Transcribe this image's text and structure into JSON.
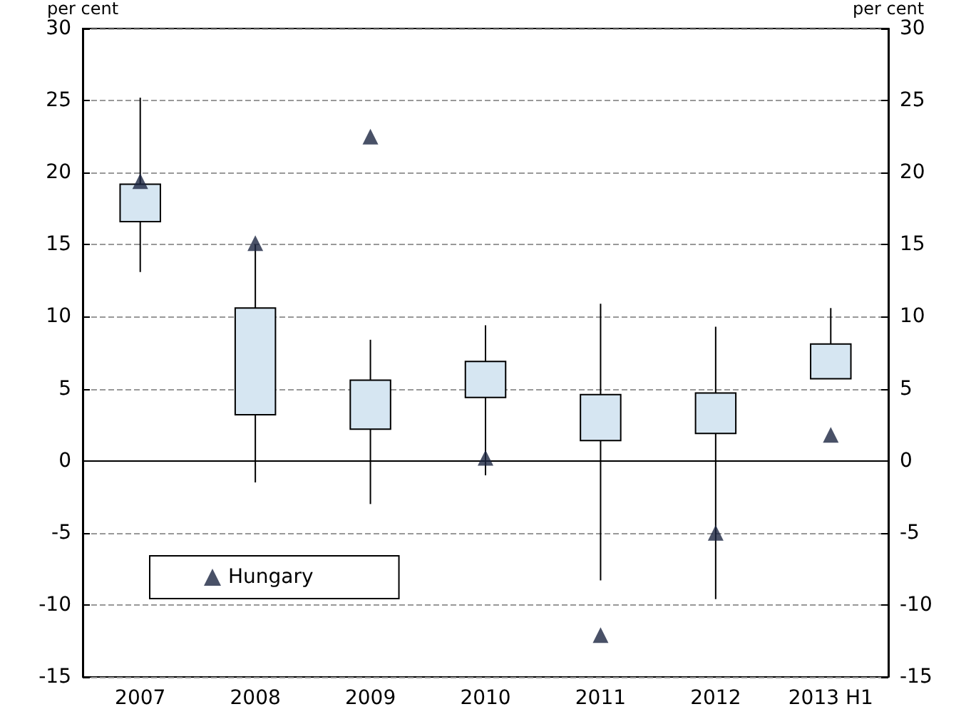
{
  "chart_data": {
    "type": "box",
    "ylabel": "per cent",
    "y2label": "per cent",
    "categories": [
      "2007",
      "2008",
      "2009",
      "2010",
      "2011",
      "2012",
      "2013 H1"
    ],
    "boxes": [
      {
        "low": 13.1,
        "q1": 16.6,
        "q3": 19.2,
        "high": 25.2
      },
      {
        "low": -1.5,
        "q1": 3.2,
        "q3": 10.6,
        "high": 15
      },
      {
        "low": -3,
        "q1": 2.2,
        "q3": 5.6,
        "high": 8.4
      },
      {
        "low": -1,
        "q1": 4.4,
        "q3": 6.9,
        "high": 9.4
      },
      {
        "low": -8.3,
        "q1": 1.4,
        "q3": 4.6,
        "high": 10.9
      },
      {
        "low": -9.6,
        "q1": 1.9,
        "q3": 4.7,
        "high": 9.3
      },
      {
        "low": 5.7,
        "q1": 5.7,
        "q3": 8.1,
        "high": 10.6
      }
    ],
    "color": "#d6e6f2",
    "series": [
      {
        "type": "scatter",
        "name": "Hungary",
        "color": "#1c2541",
        "values": [
          19.4,
          15.1,
          22.5,
          0.2,
          -12.1,
          -5,
          1.8
        ]
      }
    ],
    "ylim": [
      -15,
      30
    ],
    "yticks": [
      -15,
      -10,
      -5,
      0,
      5,
      10,
      15,
      20,
      25,
      30
    ],
    "y2lim": [
      -15,
      30
    ],
    "y2ticks": [
      -15,
      -10,
      -5,
      0,
      5,
      10,
      15,
      20,
      25,
      30
    ],
    "grid": "y",
    "legend": "bottom left",
    "marker": "triangle"
  }
}
